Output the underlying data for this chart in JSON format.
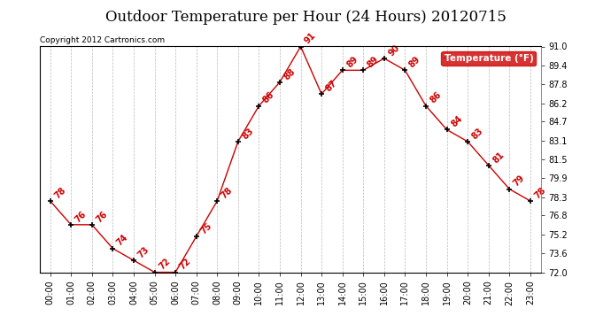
{
  "title": "Outdoor Temperature per Hour (24 Hours) 20120715",
  "copyright_text": "Copyright 2012 Cartronics.com",
  "legend_label": "Temperature (°F)",
  "hours": [
    "00:00",
    "01:00",
    "02:00",
    "03:00",
    "04:00",
    "05:00",
    "06:00",
    "07:00",
    "08:00",
    "09:00",
    "10:00",
    "11:00",
    "12:00",
    "13:00",
    "14:00",
    "15:00",
    "16:00",
    "17:00",
    "18:00",
    "19:00",
    "20:00",
    "21:00",
    "22:00",
    "23:00"
  ],
  "temperatures": [
    78,
    76,
    76,
    74,
    73,
    72,
    72,
    75,
    78,
    83,
    86,
    88,
    91,
    87,
    89,
    89,
    90,
    89,
    86,
    84,
    83,
    81,
    79,
    78
  ],
  "line_color": "#cc0000",
  "marker_color": "#000000",
  "label_color": "#cc0000",
  "background_color": "#ffffff",
  "grid_color": "#bbbbbb",
  "ylim_min": 72.0,
  "ylim_max": 91.0,
  "yticks": [
    72.0,
    73.6,
    75.2,
    76.8,
    78.3,
    79.9,
    81.5,
    83.1,
    84.7,
    86.2,
    87.8,
    89.4,
    91.0
  ],
  "title_fontsize": 12,
  "label_fontsize": 7,
  "tick_fontsize": 7,
  "copyright_fontsize": 6.5,
  "legend_fontsize": 7.5
}
